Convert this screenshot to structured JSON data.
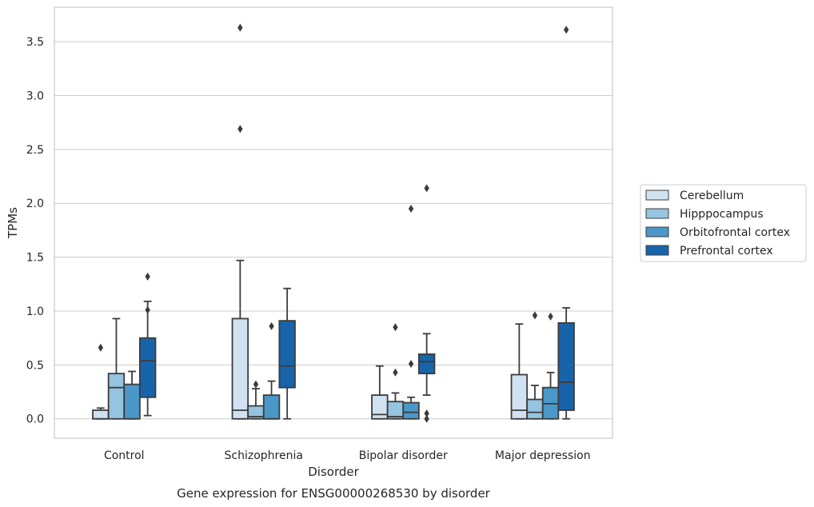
{
  "chart_data": {
    "type": "box",
    "xlabel": "Disorder",
    "ylabel": "TPMs",
    "caption": "Gene expression for ENSG00000268530 by disorder",
    "ylim": [
      -0.18,
      3.82
    ],
    "yticks": [
      "0.0",
      "0.5",
      "1.0",
      "1.5",
      "2.0",
      "2.5",
      "3.0",
      "3.5"
    ],
    "grid": "horizontal",
    "legend_position": "right",
    "categories": [
      "Control",
      "Schizophrenia",
      "Bipolar disorder",
      "Major depression"
    ],
    "series": [
      {
        "name": "Cerebellum",
        "color": "#d0e1f2",
        "boxes": [
          {
            "whislo": 0.0,
            "q1": 0.0,
            "med": 0.0,
            "q3": 0.08,
            "whishi": 0.1,
            "fliers": [
              0.66
            ]
          },
          {
            "whislo": 0.0,
            "q1": 0.0,
            "med": 0.08,
            "q3": 0.93,
            "whishi": 1.47,
            "fliers": [
              2.69,
              3.63
            ]
          },
          {
            "whislo": 0.0,
            "q1": 0.0,
            "med": 0.04,
            "q3": 0.22,
            "whishi": 0.49,
            "fliers": []
          },
          {
            "whislo": 0.0,
            "q1": 0.0,
            "med": 0.08,
            "q3": 0.41,
            "whishi": 0.88,
            "fliers": []
          }
        ]
      },
      {
        "name": "Hipppocampus",
        "color": "#94c4df",
        "boxes": [
          {
            "whislo": 0.0,
            "q1": 0.0,
            "med": 0.29,
            "q3": 0.42,
            "whishi": 0.93,
            "fliers": []
          },
          {
            "whislo": 0.0,
            "q1": 0.0,
            "med": 0.02,
            "q3": 0.12,
            "whishi": 0.28,
            "fliers": [
              0.32
            ]
          },
          {
            "whislo": 0.0,
            "q1": 0.0,
            "med": 0.02,
            "q3": 0.16,
            "whishi": 0.24,
            "fliers": [
              0.43,
              0.85
            ]
          },
          {
            "whislo": 0.0,
            "q1": 0.0,
            "med": 0.06,
            "q3": 0.18,
            "whishi": 0.31,
            "fliers": [
              0.96
            ]
          }
        ]
      },
      {
        "name": "Orbitofrontal cortex",
        "color": "#4a98c9",
        "boxes": [
          {
            "whislo": 0.0,
            "q1": 0.0,
            "med": 0.0,
            "q3": 0.32,
            "whishi": 0.44,
            "fliers": []
          },
          {
            "whislo": 0.0,
            "q1": 0.0,
            "med": 0.0,
            "q3": 0.22,
            "whishi": 0.35,
            "fliers": [
              0.86
            ]
          },
          {
            "whislo": 0.0,
            "q1": 0.0,
            "med": 0.06,
            "q3": 0.15,
            "whishi": 0.2,
            "fliers": [
              0.51,
              1.95
            ]
          },
          {
            "whislo": 0.0,
            "q1": 0.0,
            "med": 0.14,
            "q3": 0.29,
            "whishi": 0.43,
            "fliers": [
              0.95
            ]
          }
        ]
      },
      {
        "name": "Prefrontal cortex",
        "color": "#1764ab",
        "boxes": [
          {
            "whislo": 0.03,
            "q1": 0.2,
            "med": 0.54,
            "q3": 0.75,
            "whishi": 1.09,
            "fliers": [
              1.01,
              1.32
            ]
          },
          {
            "whislo": 0.0,
            "q1": 0.29,
            "med": 0.49,
            "q3": 0.91,
            "whishi": 1.21,
            "fliers": []
          },
          {
            "whislo": 0.22,
            "q1": 0.42,
            "med": 0.53,
            "q3": 0.6,
            "whishi": 0.79,
            "fliers": [
              0.0,
              0.05,
              2.14
            ]
          },
          {
            "whislo": 0.0,
            "q1": 0.08,
            "med": 0.34,
            "q3": 0.89,
            "whishi": 1.03,
            "fliers": [
              3.61
            ]
          }
        ]
      }
    ]
  }
}
